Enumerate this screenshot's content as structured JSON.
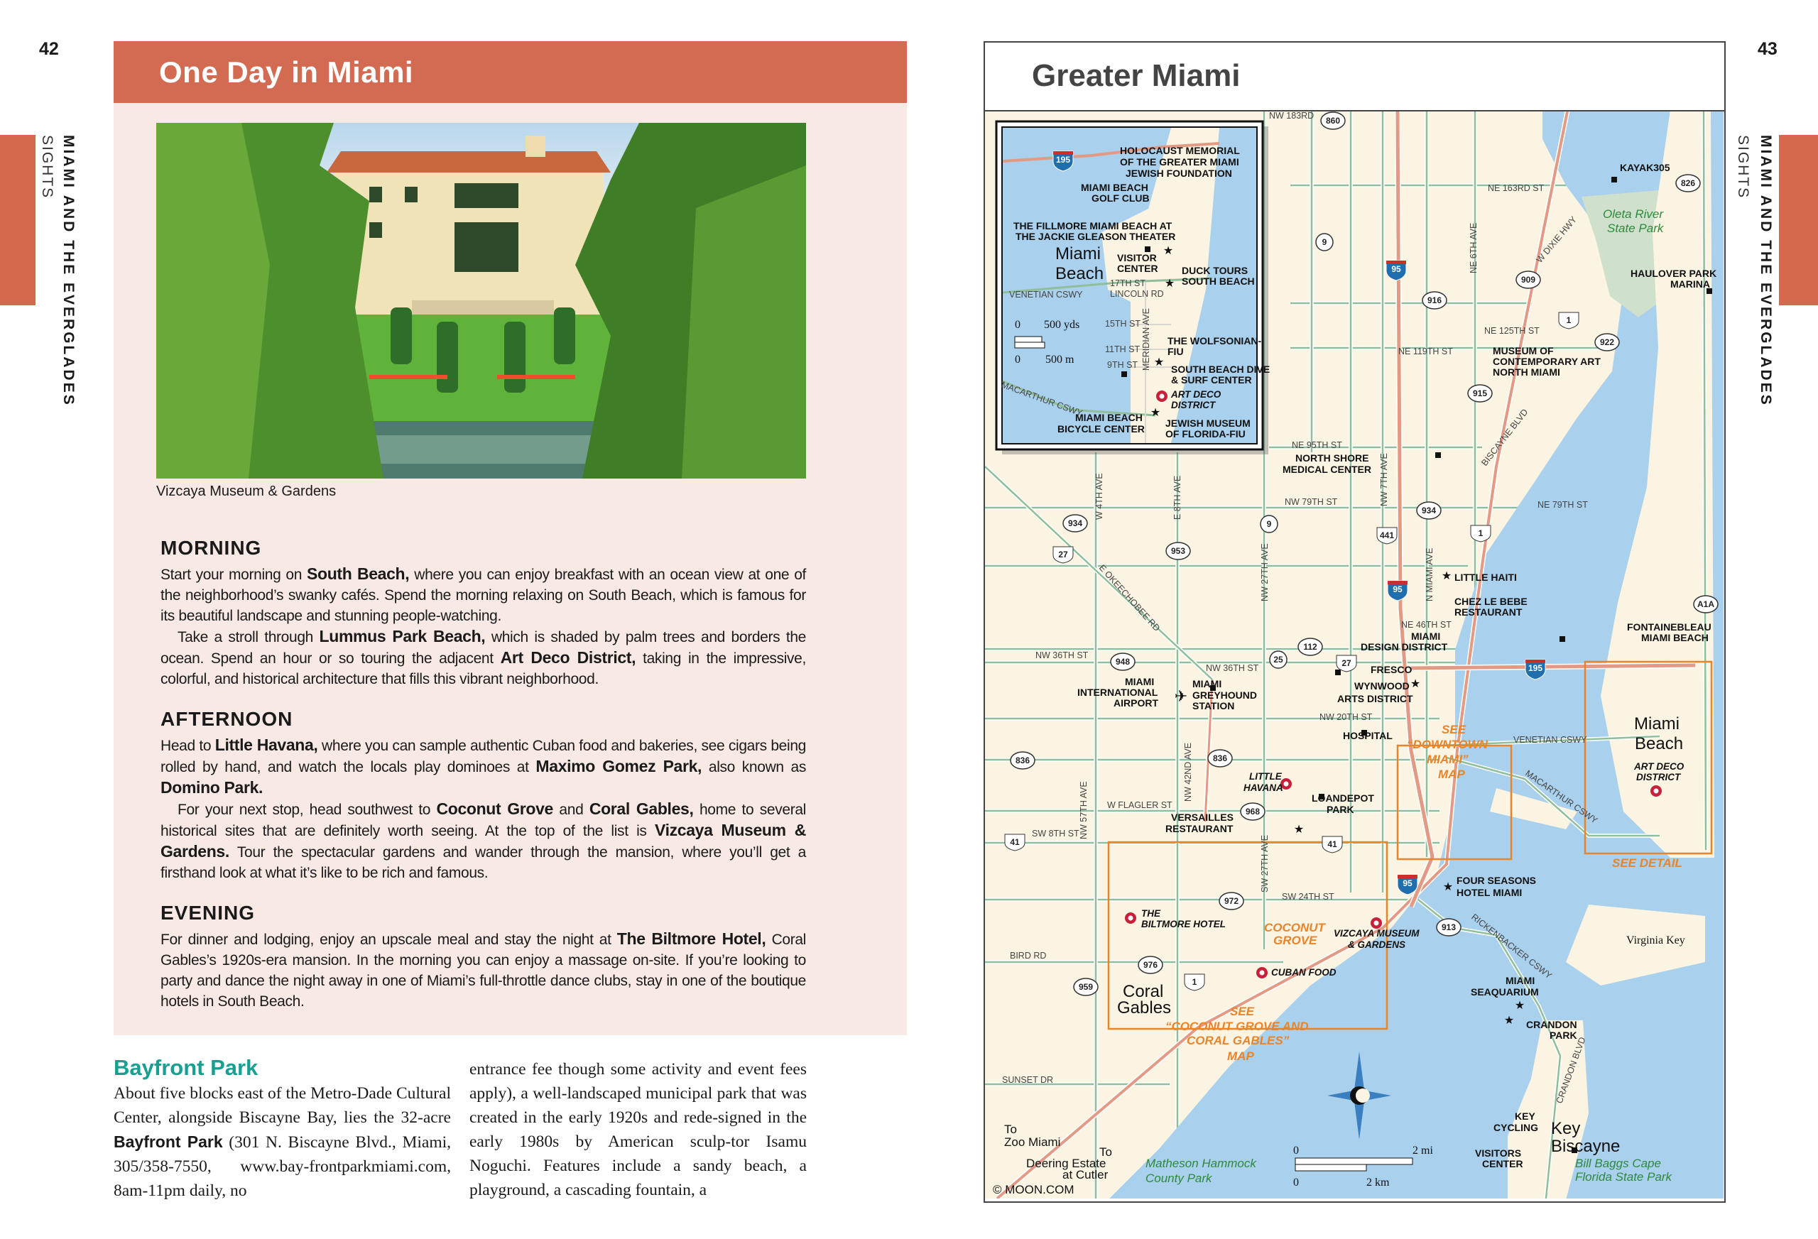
{
  "left_page": {
    "page_number": "42",
    "running_head": "MIAMI AND THE EVERGLADES",
    "running_subhead": "SIGHTS",
    "feature": {
      "title": "One Day in Miami",
      "photo_caption": "Vizcaya Museum & Gardens",
      "morning": {
        "heading": "MORNING",
        "p1": [
          "Start your morning on ",
          "South Beach,",
          " where you can enjoy breakfast with an ocean view at one of the neighborhood’s swanky cafés. Spend the morning relaxing on South Beach, which is famous for its beautiful landscape and stunning people-watching."
        ],
        "p2": [
          "Take a stroll through ",
          "Lummus Park Beach,",
          " which is shaded by palm trees and borders the ocean. Spend an hour or so touring the adjacent ",
          "Art Deco District,",
          " taking in the impressive, colorful, and historical architecture that fills this vibrant neighborhood."
        ]
      },
      "afternoon": {
        "heading": "AFTERNOON",
        "p1": [
          "Head to ",
          "Little Havana,",
          " where you can sample authentic Cuban food and bakeries, see cigars being rolled by hand, and watch the locals play dominoes at ",
          "Maximo Gomez Park,",
          " also known as ",
          "Domino Park."
        ],
        "p2": [
          "For your next stop, head southwest to ",
          "Coconut Grove",
          " and ",
          "Coral Gables,",
          " home to several historical sites that are definitely worth seeing. At the top of the list is ",
          "Vizcaya Museum & Gardens.",
          " Tour the spectacular gardens and wander through the mansion, where you’ll get a firsthand look at what it’s like to be rich and famous."
        ]
      },
      "evening": {
        "heading": "EVENING",
        "p1": [
          "For dinner and lodging, enjoy an upscale meal and stay the night at ",
          "The Biltmore Hotel,",
          " Coral Gables’s 1920s-era mansion. In the morning you can enjoy a massage on-site. If you’re looking to party and dance the night away in one of Miami’s full-throttle dance clubs, stay in one of the boutique hotels in South Beach."
        ]
      }
    },
    "bayfront": {
      "heading": "Bayfront Park",
      "col1": [
        "About five blocks east of the Metro-Dade Cultural Center, alongside Biscayne Bay, lies the 32-acre ",
        "Bayfront Park",
        " (301 N. Biscayne Blvd., Miami, 305/358-7550, www.bay-frontparkmiami.com, 8am-11pm daily, no"
      ],
      "col2": "entrance fee though some activity and event fees apply), a well-landscaped municipal park that was created in the early 1920s and rede-signed in the early 1980s by American sculp-tor Isamu Noguchi. Features include a sandy beach, a playground, a cascading fountain, a"
    }
  },
  "right_page": {
    "page_number": "43",
    "running_head": "MIAMI AND THE EVERGLADES",
    "running_subhead": "SIGHTS",
    "map": {
      "title": "Greater Miami",
      "labels": [
        "HOLOCAUST MEMORIAL",
        "OF THE GREATER MIAMI",
        "JEWISH FOUNDATION",
        "MIAMI BEACH",
        "GOLF CLUB",
        "THE FILLMORE MIAMI BEACH AT",
        "THE JACKIE GLEASON THEATER",
        "Miami",
        "Beach",
        "VISITOR",
        "CENTER",
        "17TH ST",
        "LINCOLN RD",
        "VENETIAN CSWY",
        "DUCK TOURS",
        "SOUTH BEACH",
        "15TH ST",
        "11TH ST",
        "9TH ST",
        "MERIDIAN AVE",
        "THE WOLFSONIAN-",
        "FIU",
        "SOUTH BEACH DIVE",
        "& SURF CENTER",
        "ART DECO",
        "DISTRICT",
        "MACARTHUR CSWY",
        "MIAMI BEACH",
        "BICYCLE CENTER",
        "JEWISH MUSEUM",
        "OF FLORIDA-FIU",
        "0",
        "500 yds",
        "0",
        "500 m",
        "NW 183RD",
        "KAYAK305",
        "NE 163RD ST",
        "Oleta River",
        "State Park",
        "NE 6TH AVE",
        "W DIXIE HWY",
        "HAULOVER PARK",
        "MARINA",
        "NE 125TH ST",
        "NE 119TH ST",
        "MUSEUM OF",
        "CONTEMPORARY ART",
        "NORTH MIAMI",
        "BISCAYNE BLVD",
        "NE 95TH ST",
        "NORTH SHORE",
        "MEDICAL CENTER",
        "NW 79TH ST",
        "NE 79TH ST",
        "W 4TH AVE",
        "E 8TH AVE",
        "NW 7TH AVE",
        "NW 27TH AVE",
        "N MIAMI AVE",
        "E OKEECHOBEE RD",
        "LITTLE HAITI",
        "CHEZ LE BEBE",
        "RESTAURANT",
        "NE 46TH ST",
        "MIAMI",
        "DESIGN DISTRICT",
        "FONTAINEBLEAU",
        "MIAMI BEACH",
        "NW 36TH ST",
        "NW 36TH ST",
        "FRESCO",
        "MIAMI",
        "INTERNATIONAL",
        "AIRPORT",
        "MIAMI",
        "GREYHOUND",
        "STATION",
        "WYNWOOD",
        "ARTS DISTRICT",
        "NW 20TH ST",
        "HOSPITAL",
        "SEE",
        "“DOWNTOWN",
        "MIAMI”",
        "MAP",
        "VENETIAN CSWY",
        "Miami",
        "Beach",
        "ART DECO",
        "DISTRICT",
        "MACARTHUR CSWY",
        "LITTLE",
        "HAVANA",
        "LOANDEPOT",
        "PARK",
        "NW 57TH AVE",
        "NW 42ND AVE",
        "W FLAGLER ST",
        "VERSAILLES",
        "RESTAURANT",
        "SW 8TH ST",
        "SEE DETAIL",
        "FOUR SEASONS",
        "HOTEL MIAMI",
        "SW 24TH ST",
        "SW 27TH AVE",
        "THE",
        "BILTMORE HOTEL",
        "COCONUT",
        "GROVE",
        "VIZCAYA MUSEUM",
        "& GARDENS",
        "RICKENBACKER CSWY",
        "Virginia Key",
        "BIRD RD",
        "CUBAN FOOD",
        "Coral",
        "Gables",
        "MIAMI",
        "SEAQUARIUM",
        "SEE",
        "“COCONUT GROVE AND",
        "CORAL GABLES”",
        "MAP",
        "CRANDON",
        "PARK",
        "CRANDON BLVD",
        "SUNSET DR",
        "KEY",
        "CYCLING",
        "Key",
        "Biscayne",
        "To",
        "Zoo Miami",
        "To",
        "Deering Estate",
        "at Cutler",
        "0",
        "2 mi",
        "0",
        "2 km",
        "VISITORS",
        "CENTER",
        "Matheson Hammock",
        "County Park",
        "Bill Baggs Cape",
        "Florida State Park",
        "© MOON.COM"
      ],
      "route_shields": [
        "860",
        "9",
        "826",
        "95",
        "916",
        "909",
        "1",
        "922",
        "915",
        "934",
        "9",
        "953",
        "27",
        "441",
        "934",
        "1",
        "95",
        "A1A",
        "948",
        "25",
        "112",
        "27",
        "195",
        "836",
        "836",
        "968",
        "41",
        "41",
        "95",
        "972",
        "913",
        "976",
        "959",
        "1",
        "195"
      ],
      "colors": {
        "water": "#a9d0ec",
        "land": "#fcf4e2",
        "minor_road": "#8fbf9a",
        "major_road": "#e29a84",
        "callout": "#e8842a",
        "attraction": "#c8203b",
        "park": "#2d8a3a"
      }
    }
  },
  "colors": {
    "accent": "#d36a52",
    "feature_bg": "#f8e9e4",
    "heading_teal": "#17a091"
  }
}
